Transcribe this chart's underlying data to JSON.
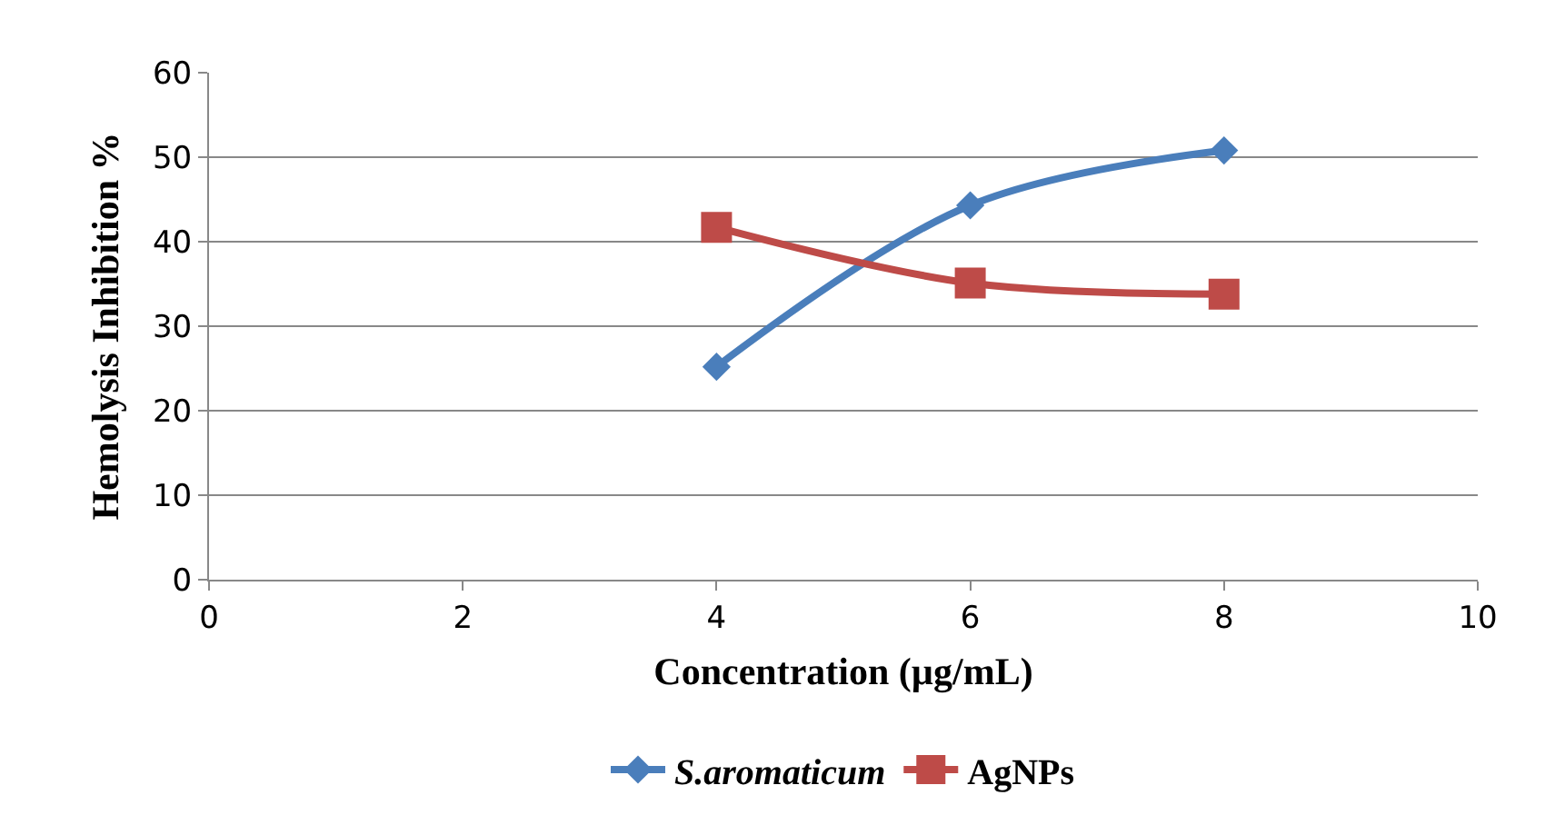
{
  "chart_data": {
    "type": "line",
    "xlabel": "Concentration (µg/mL)",
    "ylabel": "Hemolysis Inhibition %",
    "x": [
      4,
      6,
      8
    ],
    "series": [
      {
        "name": "S.aromaticum",
        "color": "#4a7ebb",
        "values": [
          25.2,
          44.3,
          50.8
        ],
        "marker": "diamond"
      },
      {
        "name": "AgNPs",
        "color": "#be4b48",
        "values": [
          41.7,
          35.1,
          33.8
        ],
        "marker": "square"
      }
    ],
    "xlim": [
      0,
      10
    ],
    "xticks": [
      0,
      2,
      4,
      6,
      8,
      10
    ],
    "ylim": [
      0,
      60
    ],
    "yticks": [
      0,
      10,
      20,
      30,
      40,
      50,
      60
    ],
    "grid": "y",
    "legend": "bottom",
    "line_style": "solid"
  }
}
